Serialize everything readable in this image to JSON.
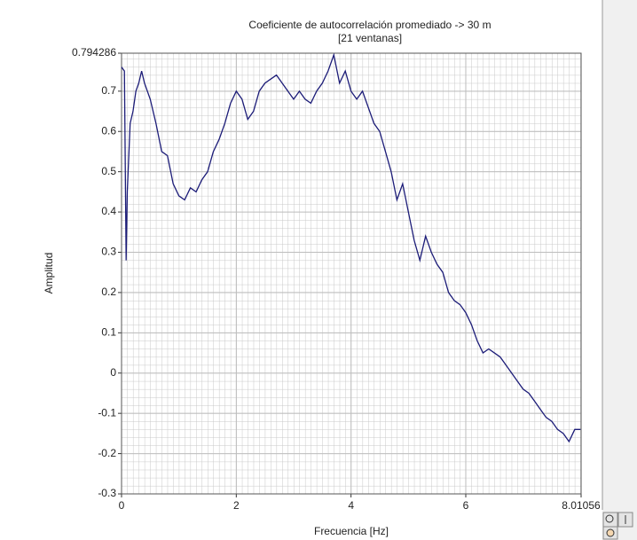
{
  "chart_data": {
    "type": "line",
    "title": "Coeficiente de autocorrelación promediado -> 30 m",
    "subtitle": "[21 ventanas]",
    "x_label": "Frecuencia [Hz]",
    "y_label": "Amplitud",
    "x": [
      0,
      0.05,
      0.08,
      0.1,
      0.15,
      0.2,
      0.25,
      0.3,
      0.35,
      0.4,
      0.5,
      0.6,
      0.7,
      0.8,
      0.9,
      1.0,
      1.1,
      1.2,
      1.3,
      1.4,
      1.5,
      1.6,
      1.7,
      1.8,
      1.9,
      2.0,
      2.1,
      2.2,
      2.3,
      2.4,
      2.5,
      2.6,
      2.7,
      2.8,
      2.9,
      3.0,
      3.1,
      3.2,
      3.3,
      3.4,
      3.5,
      3.6,
      3.7,
      3.8,
      3.9,
      4.0,
      4.1,
      4.2,
      4.3,
      4.4,
      4.5,
      4.6,
      4.7,
      4.8,
      4.9,
      5.0,
      5.1,
      5.2,
      5.3,
      5.4,
      5.5,
      5.6,
      5.7,
      5.8,
      5.9,
      6.0,
      6.1,
      6.2,
      6.3,
      6.4,
      6.5,
      6.6,
      6.7,
      6.8,
      6.9,
      7.0,
      7.1,
      7.2,
      7.3,
      7.4,
      7.5,
      7.6,
      7.7,
      7.8,
      7.9,
      8.0
    ],
    "values": [
      0.76,
      0.75,
      0.28,
      0.45,
      0.62,
      0.65,
      0.7,
      0.72,
      0.75,
      0.72,
      0.68,
      0.62,
      0.55,
      0.54,
      0.47,
      0.44,
      0.43,
      0.46,
      0.45,
      0.48,
      0.5,
      0.55,
      0.58,
      0.62,
      0.67,
      0.7,
      0.68,
      0.63,
      0.65,
      0.7,
      0.72,
      0.73,
      0.74,
      0.72,
      0.7,
      0.68,
      0.7,
      0.68,
      0.67,
      0.7,
      0.72,
      0.75,
      0.79,
      0.72,
      0.75,
      0.7,
      0.68,
      0.7,
      0.66,
      0.62,
      0.6,
      0.55,
      0.5,
      0.43,
      0.47,
      0.4,
      0.33,
      0.28,
      0.34,
      0.3,
      0.27,
      0.25,
      0.2,
      0.18,
      0.17,
      0.15,
      0.12,
      0.08,
      0.05,
      0.06,
      0.05,
      0.04,
      0.02,
      0.0,
      -0.02,
      -0.04,
      -0.05,
      -0.07,
      -0.09,
      -0.11,
      -0.12,
      -0.14,
      -0.15,
      -0.17,
      -0.14,
      -0.14
    ],
    "color": "#1c1c78",
    "xlim": [
      0,
      8.01056
    ],
    "ylim": [
      -0.3,
      0.794286
    ],
    "xticks": [
      0,
      2,
      4,
      6,
      8.01056
    ],
    "yticks": [
      -0.3,
      -0.2,
      -0.1,
      0,
      0.1,
      0.2,
      0.3,
      0.4,
      0.5,
      0.6,
      0.7,
      0.794286
    ],
    "grid": true
  }
}
